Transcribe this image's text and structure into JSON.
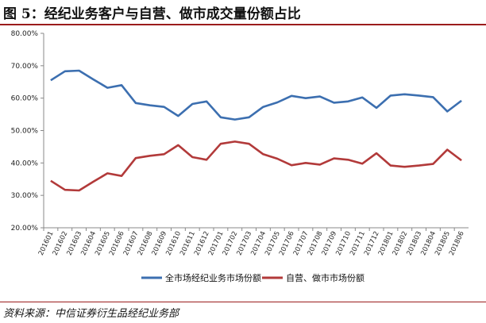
{
  "header": {
    "title": "图 5：经纪业务客户与自营、做市成交量份额占比"
  },
  "footer": {
    "source": "资料来源：中信证券衍生品经纪业务部"
  },
  "chart_data": {
    "type": "line",
    "title": "",
    "xlabel": "",
    "ylabel": "",
    "ylim": [
      20,
      80
    ],
    "yticks": [
      "20.00%",
      "30.00%",
      "40.00%",
      "50.00%",
      "60.00%",
      "70.00%",
      "80.00%"
    ],
    "grid": false,
    "legend": "bottom",
    "categories": [
      "201601",
      "201602",
      "201603",
      "201604",
      "201605",
      "201606",
      "201607",
      "201608",
      "201609",
      "201610",
      "201611",
      "201612",
      "201701",
      "201702",
      "201703",
      "201704",
      "201705",
      "201706",
      "201707",
      "201708",
      "201709",
      "201710",
      "201711",
      "201712",
      "201801",
      "201802",
      "201803",
      "201804",
      "201805",
      "201806"
    ],
    "series": [
      {
        "name": "全市场经纪业务市场份额",
        "color": "#3c6fb0",
        "values": [
          65.5,
          68.3,
          68.5,
          65.8,
          63.2,
          64.0,
          58.5,
          57.8,
          57.3,
          54.5,
          58.2,
          59.0,
          54.1,
          53.4,
          54.1,
          57.3,
          58.7,
          60.7,
          60.0,
          60.5,
          58.6,
          59.0,
          60.2,
          57.0,
          60.8,
          61.2,
          60.8,
          60.3,
          55.9,
          59.2
        ]
      },
      {
        "name": "自营、做市市场份额",
        "color": "#b23a3a",
        "values": [
          34.5,
          31.7,
          31.5,
          34.2,
          36.8,
          36.0,
          41.5,
          42.2,
          42.7,
          45.5,
          41.8,
          41.0,
          45.9,
          46.6,
          45.9,
          42.7,
          41.3,
          39.3,
          40.0,
          39.5,
          41.4,
          41.0,
          39.8,
          43.0,
          39.2,
          38.8,
          39.2,
          39.7,
          44.1,
          40.8
        ]
      }
    ]
  }
}
